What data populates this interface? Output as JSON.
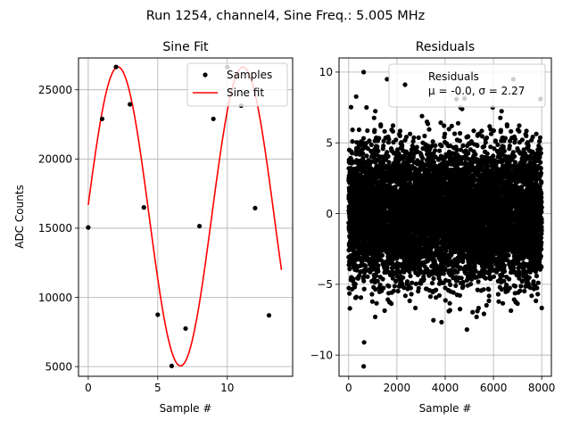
{
  "suptitle": "Run 1254, channel4, Sine Freq.: 5.005 MHz",
  "chart_data": [
    {
      "type": "line",
      "title": "Sine Fit",
      "xlabel": "Sample #",
      "ylabel": "ADC Counts",
      "xlim": [
        -0.7,
        14.7
      ],
      "ylim": [
        4300,
        27300
      ],
      "xticks": [
        0,
        5,
        10
      ],
      "yticks": [
        5000,
        10000,
        15000,
        20000,
        25000
      ],
      "grid": true,
      "legend_position": "top-right",
      "series": [
        {
          "name": "Samples",
          "kind": "scatter",
          "color": "#000000",
          "x": [
            0,
            1,
            2,
            3,
            4,
            5,
            6,
            7,
            8,
            9,
            10,
            11,
            12,
            13
          ],
          "y": [
            15050,
            22900,
            26650,
            23950,
            16500,
            8750,
            5050,
            7750,
            15150,
            22900,
            26650,
            23850,
            16450,
            8700
          ]
        },
        {
          "name": "Sine fit",
          "kind": "line",
          "color": "#ff0000",
          "function": {
            "offset": 15850,
            "amplitude": 10800,
            "period_samples": 8.99,
            "phase_sample": -0.11,
            "x_range": [
              0,
              13.9
            ]
          }
        }
      ]
    },
    {
      "type": "scatter",
      "title": "Residuals",
      "xlabel": "Sample #",
      "ylabel": "",
      "xlim": [
        -400,
        8400
      ],
      "ylim": [
        -11.5,
        11
      ],
      "xticks": [
        0,
        2000,
        4000,
        6000,
        8000
      ],
      "yticks": [
        -10,
        -5,
        0,
        5,
        10
      ],
      "grid": true,
      "legend_position": "top-right",
      "series": [
        {
          "name": "Residuals",
          "legend_lines": [
            "Residuals",
            "μ = -0.0, σ = 2.27"
          ],
          "color": "#000000",
          "n_points": 8000,
          "mean": 0.0,
          "sigma": 2.27,
          "x_range": [
            0,
            8000
          ],
          "extremes": [
            {
              "x": 620,
              "y": -10.8
            },
            {
              "x": 620,
              "y": 10.0
            },
            {
              "x": 640,
              "y": -9.1
            },
            {
              "x": 4700,
              "y": 7.4
            },
            {
              "x": 4900,
              "y": -8.2
            },
            {
              "x": 1100,
              "y": -7.3
            },
            {
              "x": 4150,
              "y": -6.9
            },
            {
              "x": 7950,
              "y": 8.1
            },
            {
              "x": 50,
              "y": -6.7
            },
            {
              "x": 5300,
              "y": -7.3
            }
          ]
        }
      ]
    }
  ]
}
